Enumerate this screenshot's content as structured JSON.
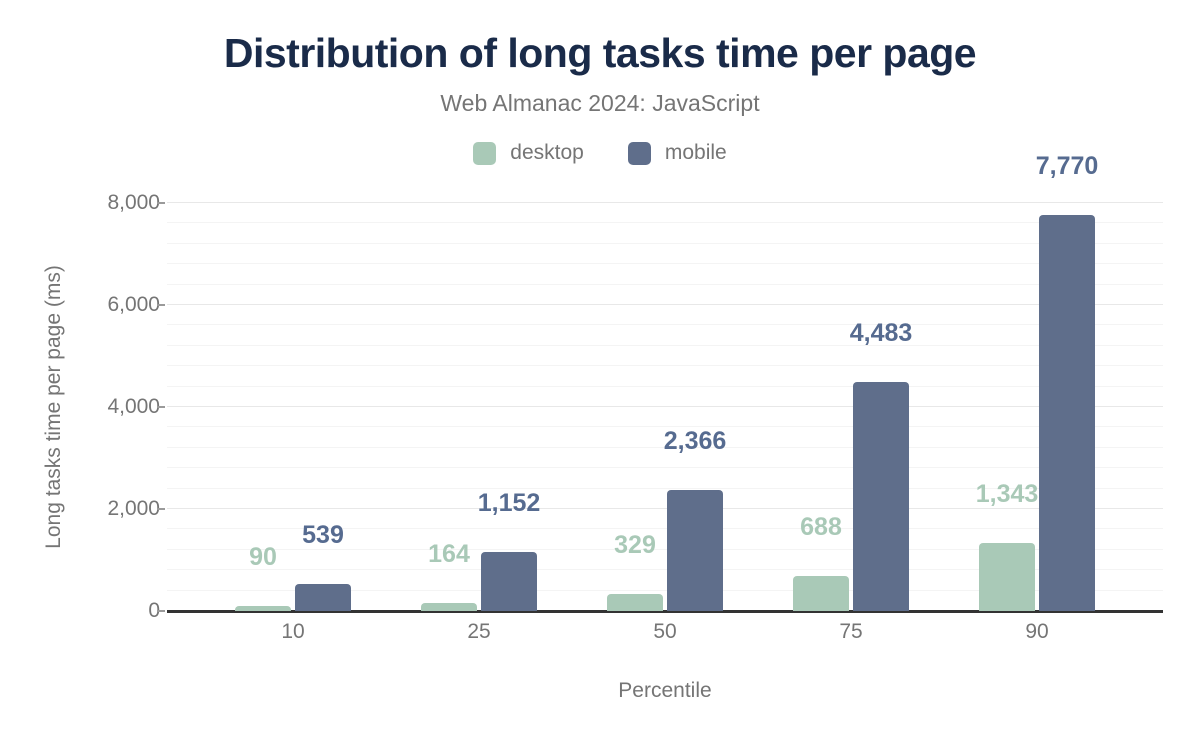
{
  "colors": {
    "title_text": "#1a2b49",
    "muted_text": "#757575",
    "axis_line": "#333333",
    "grid_major": "#e8e8e8",
    "grid_minor": "#f4f4f4",
    "desktop": "#a9c9b7",
    "mobile": "#5f6e8b",
    "desktop_label": "#a9c9b7",
    "mobile_label": "#566b90"
  },
  "chart_data": {
    "type": "bar",
    "title": "Distribution of long tasks time per page",
    "subtitle": "Web Almanac 2024: JavaScript",
    "categories": [
      "10",
      "25",
      "50",
      "75",
      "90"
    ],
    "series": [
      {
        "name": "desktop",
        "color": "#a9c9b7",
        "label_color": "#a9c9b7",
        "values": [
          90,
          164,
          329,
          688,
          1343
        ],
        "value_labels": [
          "90",
          "164",
          "329",
          "688",
          "1,343"
        ]
      },
      {
        "name": "mobile",
        "color": "#5f6e8b",
        "label_color": "#566b90",
        "values": [
          539,
          1152,
          2366,
          4483,
          7770
        ],
        "value_labels": [
          "539",
          "1,152",
          "2,366",
          "4,483",
          "7,770"
        ]
      }
    ],
    "xlabel": "Percentile",
    "ylabel": "Long tasks time per page (ms)",
    "ylim": [
      0,
      8000
    ],
    "y_major_step": 2000,
    "y_minor_step": 400,
    "y_tick_labels": [
      "0",
      "2,000",
      "4,000",
      "6,000",
      "8,000"
    ],
    "grid": "on",
    "legend_position": "top"
  }
}
